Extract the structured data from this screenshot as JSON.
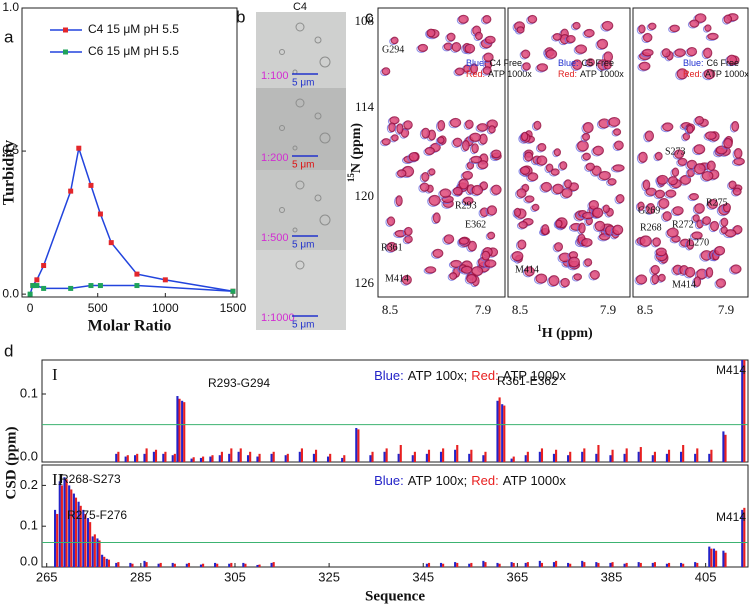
{
  "panel_labels": [
    "a",
    "b",
    "c",
    "d"
  ],
  "chart_data": [
    {
      "type": "line",
      "xlabel": "Molar Ratio",
      "ylabel": "Turbidity",
      "xlim": [
        -60,
        1530
      ],
      "ylim": [
        -0.01,
        1.0
      ],
      "xticks": [
        0,
        500,
        1000,
        1500
      ],
      "yticks": [
        {
          "value": 0,
          "label": "0.0"
        },
        0.5,
        {
          "value": 1,
          "label": "1.0"
        }
      ],
      "line_color": "#2244dd",
      "series": [
        {
          "name": "C4 15 μM pH 5.5",
          "color": "#e3262b",
          "x": [
            20,
            50,
            100,
            300,
            360,
            450,
            520,
            600,
            790,
            1000,
            1500
          ],
          "values": [
            0.03,
            0.05,
            0.1,
            0.36,
            0.51,
            0.38,
            0.28,
            0.18,
            0.07,
            0.05,
            0.01
          ]
        },
        {
          "name": "C6 15 μM pH 5.5",
          "color": "#1fa35a",
          "x": [
            0,
            20,
            50,
            100,
            300,
            450,
            520,
            790,
            1500
          ],
          "values": [
            0.0,
            0.03,
            0.03,
            0.02,
            0.02,
            0.03,
            0.03,
            0.03,
            0.01
          ]
        }
      ]
    },
    {
      "type": "bar",
      "panel": "I",
      "legend_keys": [
        "Blue:",
        "Red:"
      ],
      "legend_separator": ";",
      "xlim": [
        264,
        414
      ],
      "ylim": [
        0,
        0.15
      ],
      "yticks": [
        {
          "value": 0,
          "label": "0.0"
        },
        0.1
      ],
      "threshold": 0.055,
      "threshold_color": "#3cb371",
      "annotations": [
        "R293-G294",
        "R361-E362",
        "M414"
      ],
      "x": [
        280,
        282,
        284,
        286,
        288,
        290,
        292,
        293,
        294,
        296,
        298,
        300,
        302,
        304,
        306,
        308,
        310,
        313,
        316,
        319,
        322,
        325,
        328,
        331,
        334,
        337,
        340,
        343,
        346,
        349,
        352,
        355,
        358,
        361,
        362,
        364,
        367,
        370,
        373,
        376,
        379,
        382,
        385,
        388,
        391,
        394,
        397,
        400,
        403,
        406,
        409,
        413
      ],
      "series": [
        {
          "name": "ATP 100x",
          "color": "#2323c8",
          "values": [
            0.012,
            0.008,
            0.01,
            0.012,
            0.015,
            0.012,
            0.01,
            0.097,
            0.09,
            0.005,
            0.006,
            0.008,
            0.01,
            0.012,
            0.015,
            0.01,
            0.008,
            0.012,
            0.01,
            0.015,
            0.012,
            0.008,
            0.006,
            0.05,
            0.01,
            0.015,
            0.012,
            0.01,
            0.012,
            0.015,
            0.018,
            0.012,
            0.01,
            0.09,
            0.085,
            0.005,
            0.01,
            0.015,
            0.012,
            0.01,
            0.015,
            0.012,
            0.01,
            0.012,
            0.015,
            0.01,
            0.012,
            0.015,
            0.012,
            0.012,
            0.045,
            0.15
          ]
        },
        {
          "name": "ATP 1000x",
          "color": "#e82020",
          "values": [
            0.015,
            0.01,
            0.012,
            0.02,
            0.018,
            0.015,
            0.012,
            0.093,
            0.088,
            0.007,
            0.008,
            0.01,
            0.015,
            0.02,
            0.02,
            0.015,
            0.012,
            0.015,
            0.012,
            0.02,
            0.018,
            0.012,
            0.01,
            0.048,
            0.015,
            0.02,
            0.025,
            0.015,
            0.018,
            0.02,
            0.025,
            0.018,
            0.015,
            0.095,
            0.083,
            0.008,
            0.015,
            0.02,
            0.018,
            0.015,
            0.02,
            0.025,
            0.018,
            0.02,
            0.022,
            0.015,
            0.018,
            0.025,
            0.02,
            0.018,
            0.04,
            0.15
          ]
        }
      ]
    },
    {
      "type": "bar",
      "panel": "II",
      "legend_keys": [
        "Blue:",
        "Red:"
      ],
      "legend_separator": ";",
      "xlabel": "Sequence",
      "ylabel": "CSD (ppm)",
      "xlim": [
        264,
        414
      ],
      "ylim": [
        0,
        0.25
      ],
      "xticks": [
        265,
        285,
        305,
        325,
        345,
        365,
        385,
        405
      ],
      "yticks": [
        {
          "value": 0,
          "label": "0.0"
        },
        0.1,
        0.2
      ],
      "threshold": 0.06,
      "threshold_color": "#3cb371",
      "annotations": [
        "R268-S273",
        "R275-F276",
        "M414"
      ],
      "x": [
        267,
        268,
        269,
        270,
        271,
        272,
        273,
        274,
        275,
        276,
        277,
        278,
        280,
        283,
        286,
        289,
        292,
        295,
        298,
        301,
        304,
        307,
        310,
        313,
        346,
        349,
        352,
        355,
        358,
        361,
        364,
        367,
        370,
        373,
        376,
        379,
        382,
        385,
        388,
        391,
        394,
        397,
        400,
        403,
        406,
        407,
        409,
        413
      ],
      "series": [
        {
          "name": "ATP 100x",
          "color": "#2323c8",
          "values": [
            0.14,
            0.21,
            0.22,
            0.2,
            0.18,
            0.16,
            0.14,
            0.12,
            0.075,
            0.07,
            0.03,
            0.02,
            0.01,
            0.01,
            0.015,
            0.008,
            0.01,
            0.008,
            0.006,
            0.01,
            0.008,
            0.01,
            0.005,
            0.01,
            0.008,
            0.01,
            0.012,
            0.008,
            0.015,
            0.01,
            0.012,
            0.01,
            0.015,
            0.012,
            0.01,
            0.015,
            0.012,
            0.01,
            0.008,
            0.012,
            0.01,
            0.008,
            0.01,
            0.012,
            0.05,
            0.045,
            0.04,
            0.14
          ]
        },
        {
          "name": "ATP 1000x",
          "color": "#e82020",
          "values": [
            0.13,
            0.2,
            0.215,
            0.19,
            0.17,
            0.15,
            0.13,
            0.11,
            0.08,
            0.065,
            0.025,
            0.018,
            0.012,
            0.008,
            0.012,
            0.01,
            0.008,
            0.01,
            0.008,
            0.008,
            0.01,
            0.008,
            0.006,
            0.012,
            0.01,
            0.008,
            0.01,
            0.01,
            0.012,
            0.008,
            0.01,
            0.012,
            0.01,
            0.015,
            0.008,
            0.012,
            0.01,
            0.012,
            0.01,
            0.01,
            0.012,
            0.01,
            0.008,
            0.01,
            0.045,
            0.04,
            0.035,
            0.145
          ]
        }
      ]
    }
  ],
  "panel_b": {
    "title": "C4",
    "images": [
      {
        "ratio": "1:100",
        "scale": "5 μm"
      },
      {
        "ratio": "1:200",
        "scale": "5 μm"
      },
      {
        "ratio": "1:500",
        "scale": "5 μm"
      },
      {
        "ratio": "1:1000",
        "scale": "5 μm"
      }
    ]
  },
  "panel_c": {
    "ylabel": {
      "sup": "15",
      "text": "N (ppm)"
    },
    "xlabel": {
      "sup": "1",
      "text": "H (ppm)"
    },
    "yticks": [
      "108",
      "114",
      "120",
      "126"
    ],
    "spectra": [
      {
        "xticks": [
          "8.5",
          "7.9"
        ],
        "legend": [
          {
            "key": "Blue:",
            "text": "C4 Free"
          },
          {
            "key": "Red:",
            "text": "ATP 1000x"
          }
        ],
        "peak_labels": [
          "G294",
          "R293",
          "E362",
          "R361",
          "M414"
        ]
      },
      {
        "xticks": [
          "8.5",
          "7.9"
        ],
        "legend": [
          {
            "key": "Blue:",
            "text": "C5 Free"
          },
          {
            "key": "Red:",
            "text": "ATP 1000x"
          }
        ],
        "peak_labels": [
          "M414"
        ]
      },
      {
        "xticks": [
          "8.5",
          "7.9"
        ],
        "legend": [
          {
            "key": "Blue:",
            "text": "C6 Free"
          },
          {
            "key": "Red:",
            "text": "ATP 1000x"
          }
        ],
        "peak_labels": [
          "S273",
          "R275",
          "G269",
          "R268",
          "R272",
          "L270",
          "M414"
        ]
      }
    ]
  }
}
